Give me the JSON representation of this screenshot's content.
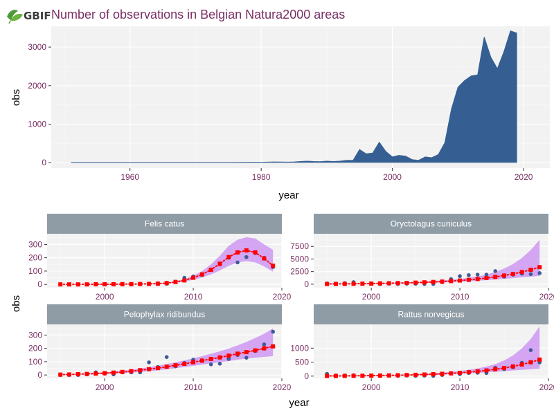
{
  "colors": {
    "panel_bg": "#f2f2f2",
    "grid_major": "#ffffff",
    "grid_minor": "#f8f8f8",
    "area_fill": "#355f93",
    "point_color": "#3f5b96",
    "fit_color": "#ff0000",
    "ribbon_color": "#c98bf2",
    "strip_bg": "#8f9ca6",
    "title_color": "#7a2e63",
    "tick_color": "#7a2e63"
  },
  "logo": {
    "text": "GBIF",
    "icon": "leaf-icon"
  },
  "chart_data": [
    {
      "type": "area",
      "title": "Number of observations in Belgian Natura2000 areas",
      "xlabel": "year",
      "ylabel": "obs",
      "xlim": [
        1948,
        2024
      ],
      "ylim": [
        -140,
        3540
      ],
      "xticks": [
        1960,
        1980,
        2000,
        2020
      ],
      "yticks": [
        0,
        1000,
        2000,
        3000
      ],
      "xticklabels": [
        "1960",
        "1980",
        "2000",
        "2020"
      ],
      "yticklabels": [
        "0",
        "1000",
        "2000",
        "3000"
      ],
      "grid": true,
      "x": [
        1951,
        1955,
        1960,
        1965,
        1970,
        1975,
        1978,
        1980,
        1982,
        1984,
        1985,
        1986,
        1987,
        1988,
        1989,
        1990,
        1991,
        1992,
        1993,
        1994,
        1995,
        1996,
        1997,
        1998,
        1999,
        2000,
        2001,
        2002,
        2003,
        2004,
        2005,
        2006,
        2007,
        2008,
        2009,
        2010,
        2011,
        2012,
        2013,
        2014,
        2015,
        2016,
        2017,
        2018,
        2019
      ],
      "y": [
        5,
        5,
        5,
        5,
        5,
        5,
        10,
        10,
        20,
        15,
        20,
        30,
        40,
        30,
        25,
        40,
        30,
        40,
        60,
        60,
        340,
        230,
        250,
        530,
        290,
        150,
        190,
        170,
        80,
        60,
        150,
        130,
        210,
        520,
        1390,
        1960,
        2130,
        2250,
        2280,
        3260,
        2740,
        2440,
        2880,
        3420,
        3360
      ]
    },
    {
      "type": "scatter",
      "title": "Felis catus",
      "xlim": [
        1993.5,
        2020
      ],
      "ylim": [
        -25,
        380
      ],
      "xticks": [
        2000,
        2010,
        2020
      ],
      "yticks": [
        0,
        100,
        200,
        300
      ],
      "xticklabels": [
        "2000",
        "2010",
        "2020"
      ],
      "yticklabels": [
        "0",
        "100",
        "200",
        "300"
      ],
      "x": [
        1995,
        1996,
        1997,
        1998,
        1999,
        2000,
        2001,
        2002,
        2003,
        2004,
        2005,
        2006,
        2007,
        2008,
        2009,
        2010,
        2011,
        2012,
        2013,
        2014,
        2015,
        2016,
        2017,
        2018,
        2019
      ],
      "observed": [
        0,
        0,
        0,
        0,
        0,
        0,
        0,
        0,
        0,
        2,
        2,
        3,
        5,
        20,
        50,
        60,
        70,
        110,
        150,
        200,
        165,
        205,
        235,
        200,
        130
      ],
      "fitted": [
        0,
        0,
        0,
        0,
        1,
        1,
        1,
        2,
        2,
        3,
        4,
        6,
        10,
        18,
        30,
        50,
        75,
        110,
        155,
        205,
        240,
        255,
        240,
        195,
        140
      ],
      "lower": [
        0,
        0,
        0,
        0,
        0,
        0,
        1,
        1,
        1,
        2,
        3,
        4,
        7,
        12,
        21,
        35,
        52,
        75,
        105,
        140,
        165,
        175,
        165,
        135,
        95
      ],
      "upper": [
        0,
        0,
        1,
        1,
        1,
        1,
        2,
        2,
        3,
        4,
        6,
        8,
        13,
        24,
        40,
        66,
        100,
        150,
        215,
        290,
        335,
        355,
        345,
        300,
        260
      ]
    },
    {
      "type": "scatter",
      "title": "Oryctolagus cuniculus",
      "xlim": [
        1993.5,
        2020
      ],
      "ylim": [
        -700,
        10000
      ],
      "xticks": [
        2000,
        2010,
        2020
      ],
      "yticks": [
        0,
        2500,
        5000,
        7500
      ],
      "xticklabels": [
        "2000",
        "2010",
        "2020"
      ],
      "yticklabels": [
        "0",
        "2500",
        "5000",
        "7500"
      ],
      "x": [
        1995,
        1996,
        1997,
        1998,
        1999,
        2000,
        2001,
        2002,
        2003,
        2004,
        2005,
        2006,
        2007,
        2008,
        2009,
        2010,
        2011,
        2012,
        2013,
        2014,
        2015,
        2016,
        2017,
        2018,
        2019
      ],
      "observed": [
        150,
        100,
        200,
        400,
        100,
        100,
        50,
        100,
        50,
        100,
        100,
        50,
        50,
        400,
        1000,
        1600,
        1800,
        1900,
        1900,
        2600,
        1500,
        1900,
        2100,
        2000,
        2200
      ],
      "fitted": [
        50,
        60,
        70,
        90,
        110,
        130,
        160,
        190,
        220,
        260,
        310,
        370,
        440,
        520,
        620,
        730,
        870,
        1030,
        1220,
        1450,
        1720,
        2040,
        2420,
        2860,
        3380
      ],
      "lower": [
        30,
        40,
        50,
        60,
        70,
        90,
        110,
        130,
        150,
        180,
        210,
        250,
        300,
        350,
        420,
        490,
        580,
        690,
        800,
        920,
        1060,
        1200,
        1350,
        1500,
        1650
      ],
      "upper": [
        80,
        90,
        110,
        130,
        160,
        190,
        230,
        270,
        320,
        380,
        450,
        540,
        640,
        760,
        900,
        1070,
        1280,
        1550,
        1900,
        2400,
        3100,
        4000,
        5200,
        6800,
        8800
      ]
    },
    {
      "type": "scatter",
      "title": "Pelophylax ridibundus",
      "xlim": [
        1993.5,
        2020
      ],
      "ylim": [
        -25,
        380
      ],
      "xticks": [
        2000,
        2010,
        2020
      ],
      "yticks": [
        0,
        100,
        200,
        300
      ],
      "xticklabels": [
        "2000",
        "2010",
        "2020"
      ],
      "yticklabels": [
        "0",
        "100",
        "200",
        "300"
      ],
      "x": [
        1995,
        1996,
        1997,
        1998,
        1999,
        2000,
        2001,
        2002,
        2003,
        2004,
        2005,
        2006,
        2007,
        2008,
        2009,
        2010,
        2011,
        2012,
        2013,
        2014,
        2015,
        2016,
        2017,
        2018,
        2019
      ],
      "observed": [
        0,
        0,
        0,
        5,
        20,
        10,
        5,
        20,
        20,
        20,
        95,
        60,
        135,
        65,
        90,
        115,
        110,
        80,
        85,
        120,
        150,
        130,
        180,
        230,
        325
      ],
      "fitted": [
        3,
        4,
        6,
        8,
        11,
        14,
        18,
        23,
        29,
        36,
        44,
        52,
        62,
        73,
        84,
        96,
        108,
        120,
        132,
        145,
        160,
        172,
        185,
        200,
        215
      ],
      "lower": [
        1,
        2,
        3,
        4,
        6,
        8,
        11,
        14,
        18,
        23,
        29,
        35,
        43,
        51,
        60,
        69,
        78,
        87,
        96,
        105,
        115,
        123,
        130,
        136,
        142
      ],
      "upper": [
        6,
        7,
        9,
        12,
        16,
        20,
        25,
        32,
        40,
        49,
        59,
        70,
        83,
        96,
        110,
        125,
        142,
        160,
        178,
        198,
        222,
        248,
        278,
        310,
        350
      ]
    },
    {
      "type": "scatter",
      "title": "Rattus norvegicus",
      "xlim": [
        1993.5,
        2020
      ],
      "ylim": [
        -80,
        1850
      ],
      "xticks": [
        2000,
        2010,
        2020
      ],
      "yticks": [
        0,
        500,
        1000
      ],
      "xticklabels": [
        "2000",
        "2010",
        "2020"
      ],
      "yticklabels": [
        "0",
        "500",
        "1000"
      ],
      "x": [
        1995,
        1996,
        1997,
        1998,
        1999,
        2000,
        2001,
        2002,
        2003,
        2004,
        2005,
        2006,
        2007,
        2008,
        2009,
        2010,
        2011,
        2012,
        2013,
        2014,
        2015,
        2016,
        2017,
        2018,
        2019
      ],
      "observed": [
        80,
        20,
        20,
        30,
        10,
        20,
        10,
        20,
        10,
        20,
        10,
        20,
        10,
        40,
        100,
        70,
        110,
        120,
        110,
        300,
        250,
        320,
        480,
        930,
        490
      ],
      "fitted": [
        5,
        6,
        8,
        10,
        13,
        16,
        20,
        25,
        31,
        38,
        46,
        56,
        68,
        82,
        98,
        118,
        142,
        170,
        203,
        243,
        290,
        347,
        415,
        495,
        590
      ],
      "lower": [
        2,
        3,
        4,
        6,
        8,
        10,
        13,
        16,
        20,
        25,
        31,
        38,
        46,
        56,
        67,
        80,
        96,
        114,
        134,
        156,
        178,
        200,
        222,
        244,
        265
      ],
      "upper": [
        10,
        12,
        15,
        18,
        22,
        27,
        33,
        40,
        49,
        59,
        71,
        86,
        104,
        126,
        152,
        185,
        225,
        275,
        340,
        430,
        560,
        740,
        990,
        1330,
        1780
      ]
    }
  ]
}
